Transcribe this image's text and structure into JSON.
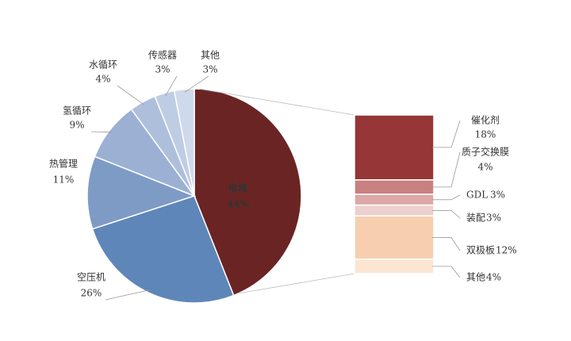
{
  "chart_data": {
    "type": "pie",
    "categories": [
      "电堆",
      "空压机",
      "热管理",
      "氢循环",
      "水循环",
      "传感器",
      "其他"
    ],
    "values": [
      44,
      26,
      11,
      9,
      4,
      3,
      3
    ],
    "value_labels": [
      "44%",
      "26%",
      "11%",
      "9%",
      "4%",
      "3%",
      "3%"
    ],
    "colors": [
      "#6b2424",
      "#5f86b9",
      "#7e9bc6",
      "#9bb0d3",
      "#aebfdc",
      "#bfcde4",
      "#ced9ec"
    ],
    "breakdown": {
      "categories": [
        "催化剂",
        "质子交换膜",
        "GDL",
        "装配",
        "双极板",
        "其他"
      ],
      "values": [
        18,
        4,
        3,
        3,
        12,
        4
      ],
      "value_labels": [
        "18%",
        "4%",
        "3%",
        "3%",
        "12%",
        "4%"
      ],
      "colors": [
        "#963636",
        "#c98080",
        "#dda7a7",
        "#ecd0cd",
        "#f7cfb0",
        "#fce5d3"
      ]
    }
  }
}
